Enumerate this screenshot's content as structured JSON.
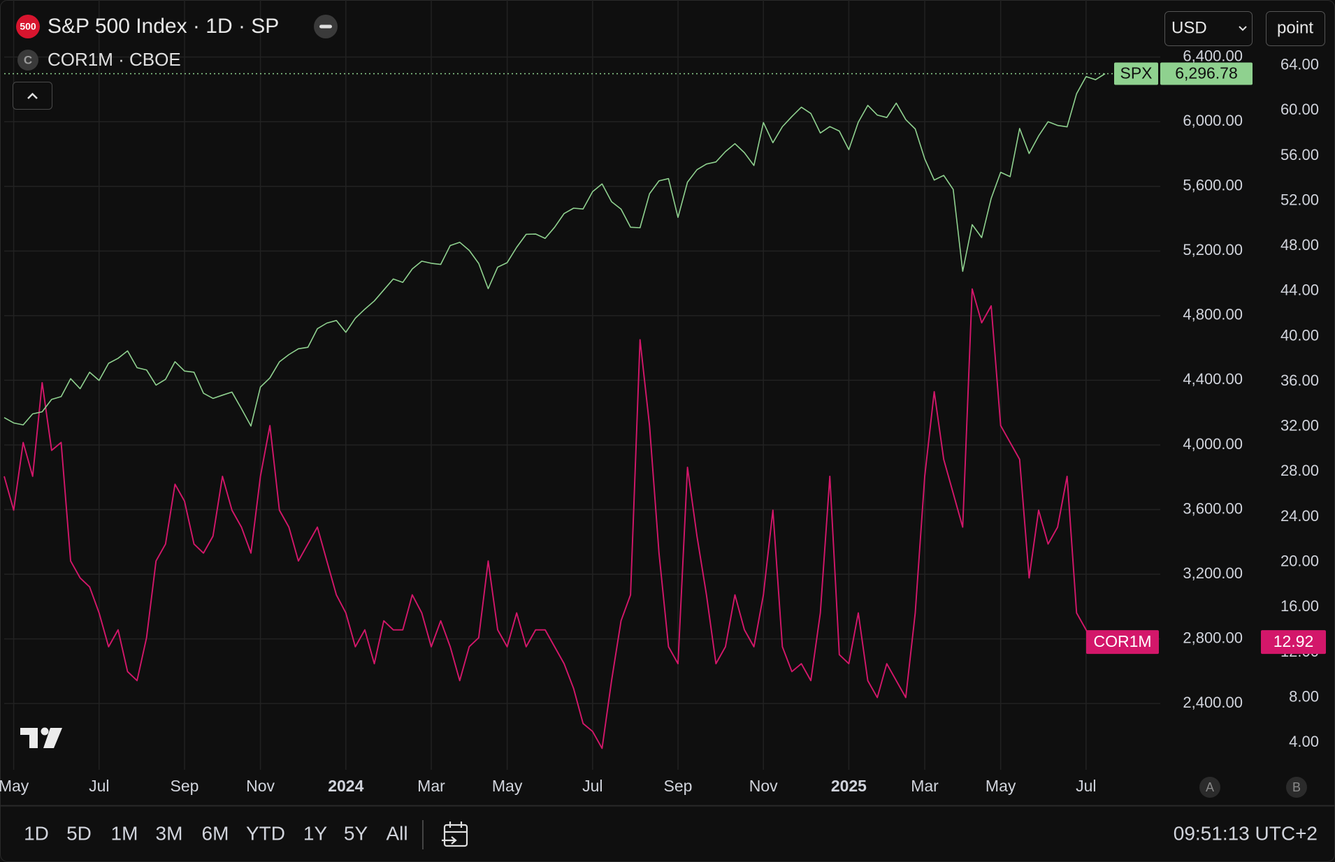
{
  "chart_data": {
    "type": "line",
    "title": "S&P 500 Index · 1D · SP",
    "subtitle": "COR1M · CBOE",
    "categories": [
      null,
      "May",
      null,
      null,
      null,
      null,
      null,
      null,
      null,
      null,
      "Jul",
      null,
      null,
      null,
      null,
      null,
      null,
      null,
      null,
      "Sep",
      null,
      null,
      null,
      null,
      null,
      null,
      null,
      "Nov",
      null,
      null,
      null,
      null,
      null,
      null,
      null,
      null,
      "2024",
      null,
      null,
      null,
      null,
      null,
      null,
      null,
      null,
      "Mar",
      null,
      null,
      null,
      null,
      null,
      null,
      null,
      "May",
      null,
      null,
      null,
      null,
      null,
      null,
      null,
      null,
      "Jul",
      null,
      null,
      null,
      null,
      null,
      null,
      null,
      null,
      "Sep",
      null,
      null,
      null,
      null,
      null,
      null,
      null,
      null,
      "Nov",
      null,
      null,
      null,
      null,
      null,
      null,
      null,
      null,
      "2025",
      null,
      null,
      null,
      null,
      null,
      null,
      null,
      "Mar",
      null,
      null,
      null,
      null,
      null,
      null,
      null,
      "May",
      null,
      null,
      null,
      null,
      null,
      null,
      null,
      null,
      "Jul",
      null,
      null
    ],
    "series": [
      {
        "name": "SPX",
        "color": "#8fd18f",
        "axis": "y",
        "values": [
          4169,
          4136,
          4124,
          4192,
          4205,
          4282,
          4299,
          4410,
          4348,
          4450,
          4399,
          4505,
          4536,
          4582,
          4478,
          4464,
          4370,
          4406,
          4515,
          4457,
          4450,
          4320,
          4288,
          4308,
          4327,
          4224,
          4117,
          4358,
          4415,
          4514,
          4559,
          4595,
          4604,
          4719,
          4754,
          4770,
          4697,
          4784,
          4840,
          4891,
          4959,
          5027,
          5006,
          5089,
          5137,
          5124,
          5117,
          5234,
          5254,
          5204,
          5123,
          4967,
          5100,
          5128,
          5223,
          5303,
          5305,
          5278,
          5347,
          5432,
          5465,
          5460,
          5567,
          5615,
          5505,
          5459,
          5347,
          5344,
          5554,
          5634,
          5648,
          5408,
          5626,
          5703,
          5738,
          5751,
          5815,
          5864,
          5808,
          5729,
          5995,
          5870,
          5969,
          6032,
          6090,
          6051,
          5930,
          5970,
          5942,
          5827,
          5997,
          6101,
          6041,
          6026,
          6115,
          6013,
          5955,
          5770,
          5639,
          5668,
          5581,
          5074,
          5363,
          5283,
          5525,
          5687,
          5660,
          5958,
          5803,
          5912,
          6000,
          5977,
          5968,
          6173,
          6279,
          6260,
          6296.78
        ],
        "price_tag": {
          "value": 6296.78,
          "label": "6,296.78"
        }
      },
      {
        "name": "COR1M",
        "color": "#d3176a",
        "axis": "y2",
        "values": [
          27.6,
          24.6,
          30.6,
          27.6,
          35.9,
          29.9,
          30.6,
          20.1,
          18.6,
          17.8,
          15.5,
          12.5,
          14.0,
          10.3,
          9.5,
          13.3,
          20.1,
          21.6,
          26.9,
          25.4,
          21.6,
          20.8,
          22.3,
          27.6,
          24.6,
          23.1,
          20.8,
          27.6,
          32.1,
          24.6,
          23.1,
          20.1,
          21.6,
          23.1,
          20.1,
          17.1,
          15.5,
          12.5,
          14.0,
          11.0,
          14.8,
          14.0,
          14.0,
          17.1,
          15.5,
          12.5,
          14.8,
          12.5,
          9.5,
          12.5,
          13.3,
          20.1,
          14.0,
          12.5,
          15.5,
          12.5,
          14.0,
          14.0,
          12.5,
          11.0,
          8.8,
          5.7,
          5.0,
          3.5,
          9.5,
          14.8,
          17.1,
          39.7,
          32.1,
          20.8,
          12.5,
          11.0,
          28.4,
          22.3,
          17.1,
          11.0,
          12.5,
          17.1,
          14.0,
          12.5,
          17.1,
          24.6,
          12.5,
          10.3,
          11.0,
          9.5,
          15.5,
          27.6,
          11.8,
          11.0,
          15.5,
          9.5,
          8.0,
          11.0,
          9.5,
          8.0,
          15.5,
          27.6,
          35.1,
          29.1,
          26.1,
          23.1,
          44.2,
          41.2,
          42.7,
          32.1,
          30.6,
          29.1,
          18.6,
          24.6,
          21.6,
          23.1,
          27.6,
          15.5,
          14.0,
          12.5,
          12.92
        ],
        "price_tag": {
          "value": 12.92,
          "label": "12.92"
        }
      }
    ],
    "ylim": [
      1990,
      6753
    ],
    "yticks": [
      {
        "value": 2400,
        "label": "2,400.00"
      },
      {
        "value": 2800,
        "label": "2,800.00"
      },
      {
        "value": 3200,
        "label": "3,200.00"
      },
      {
        "value": 3600,
        "label": "3,600.00"
      },
      {
        "value": 4000,
        "label": "4,000.00"
      },
      {
        "value": 4400,
        "label": "4,400.00"
      },
      {
        "value": 4800,
        "label": "4,800.00"
      },
      {
        "value": 5200,
        "label": "5,200.00"
      },
      {
        "value": 5600,
        "label": "5,600.00"
      },
      {
        "value": 6000,
        "label": "6,000.00"
      },
      {
        "value": 6400,
        "label": "6,400.00"
      }
    ],
    "y2lim": [
      1.6,
      69.8
    ],
    "y2ticks": [
      {
        "value": 4,
        "label": "4.00"
      },
      {
        "value": 8,
        "label": "8.00"
      },
      {
        "value": 12,
        "label": "12.00"
      },
      {
        "value": 16,
        "label": "16.00"
      },
      {
        "value": 20,
        "label": "20.00"
      },
      {
        "value": 24,
        "label": "24.00"
      },
      {
        "value": 28,
        "label": "28.00"
      },
      {
        "value": 32,
        "label": "32.00"
      },
      {
        "value": 36,
        "label": "36.00"
      },
      {
        "value": 40,
        "label": "40.00"
      },
      {
        "value": 44,
        "label": "44.00"
      },
      {
        "value": 48,
        "label": "48.00"
      },
      {
        "value": 52,
        "label": "52.00"
      },
      {
        "value": 56,
        "label": "56.00"
      },
      {
        "value": 60,
        "label": "60.00"
      },
      {
        "value": 64,
        "label": "64.00"
      }
    ],
    "grid": true
  },
  "ui": {
    "symbol_badge": "500",
    "compare_badge": "C",
    "currency": "USD",
    "unit": "point",
    "scale_buttons": [
      "A",
      "B"
    ],
    "ranges": [
      "1D",
      "5D",
      "1M",
      "3M",
      "6M",
      "YTD",
      "1Y",
      "5Y",
      "All"
    ],
    "time": "09:51:13 UTC+2"
  }
}
